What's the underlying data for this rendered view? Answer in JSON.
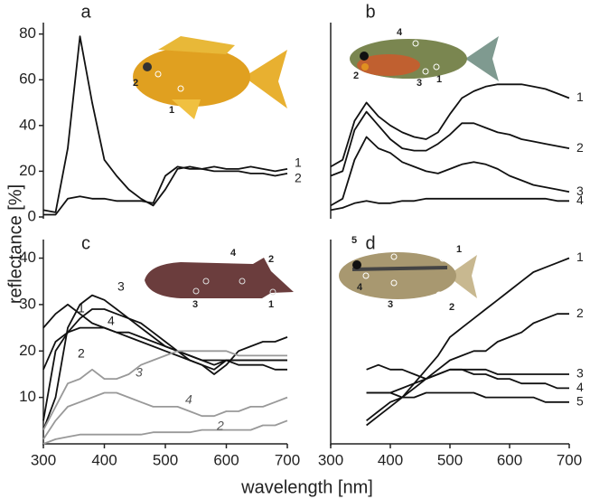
{
  "figure": {
    "ylabel": "reflectance [%]",
    "xlabel": "wavelength [nm]"
  },
  "chart_data": [
    {
      "type": "line",
      "title": "a",
      "x": [
        300,
        320,
        340,
        360,
        380,
        400,
        420,
        440,
        460,
        480,
        500,
        520,
        540,
        560,
        580,
        600,
        620,
        640,
        660,
        680,
        700
      ],
      "xlim": [
        300,
        700
      ],
      "ylim": [
        0,
        85
      ],
      "yticks": [
        0,
        20,
        40,
        60,
        80
      ],
      "photo_labels": [
        "2",
        "1"
      ],
      "series": [
        {
          "name": "1",
          "color": "#111111",
          "values": [
            3,
            2,
            30,
            79,
            50,
            25,
            18,
            12,
            8,
            5,
            12,
            21,
            22,
            21,
            22,
            21,
            21,
            22,
            21,
            20,
            21
          ]
        },
        {
          "name": "2",
          "color": "#111111",
          "values": [
            1,
            1,
            8,
            9,
            8,
            8,
            7,
            7,
            7,
            6,
            18,
            22,
            21,
            21,
            20,
            20,
            20,
            19,
            19,
            18,
            19
          ]
        }
      ]
    },
    {
      "type": "line",
      "title": "b",
      "x": [
        300,
        320,
        340,
        360,
        380,
        400,
        420,
        440,
        460,
        480,
        500,
        520,
        540,
        560,
        580,
        600,
        620,
        640,
        660,
        680,
        700
      ],
      "xlim": [
        300,
        700
      ],
      "ylim": [
        0,
        85
      ],
      "photo_labels": [
        "4",
        "2",
        "3",
        "1"
      ],
      "series": [
        {
          "name": "1",
          "color": "#111111",
          "values": [
            22,
            25,
            42,
            50,
            44,
            40,
            37,
            35,
            34,
            37,
            45,
            52,
            55,
            57,
            58,
            58,
            58,
            57,
            56,
            54,
            52
          ]
        },
        {
          "name": "2",
          "color": "#111111",
          "values": [
            18,
            20,
            38,
            46,
            40,
            34,
            30,
            29,
            29,
            32,
            36,
            41,
            41,
            39,
            37,
            36,
            34,
            33,
            32,
            31,
            30
          ]
        },
        {
          "name": "3",
          "color": "#111111",
          "values": [
            5,
            8,
            25,
            35,
            30,
            28,
            24,
            22,
            20,
            19,
            21,
            23,
            24,
            23,
            21,
            18,
            16,
            14,
            13,
            12,
            11
          ]
        },
        {
          "name": "4",
          "color": "#111111",
          "values": [
            3,
            4,
            6,
            7,
            6,
            6,
            7,
            7,
            8,
            8,
            8,
            8,
            8,
            8,
            8,
            8,
            8,
            8,
            8,
            7,
            7
          ]
        }
      ]
    },
    {
      "type": "line",
      "title": "c",
      "x": [
        300,
        320,
        340,
        360,
        380,
        400,
        420,
        440,
        460,
        480,
        500,
        520,
        540,
        560,
        580,
        600,
        620,
        640,
        660,
        680,
        700
      ],
      "xlim": [
        300,
        700
      ],
      "ylim": [
        0,
        44
      ],
      "yticks": [
        10,
        20,
        30,
        40
      ],
      "xticks": [
        300,
        400,
        500,
        600,
        700
      ],
      "photo_labels": [
        "4",
        "2",
        "3",
        "1"
      ],
      "series": [
        {
          "name": "1",
          "color": "#111111",
          "values": [
            25,
            28,
            30,
            28,
            26,
            25,
            24,
            23,
            22,
            21,
            20,
            19,
            18,
            17,
            15,
            17,
            20,
            21,
            22,
            22,
            23
          ]
        },
        {
          "name": "2",
          "color": "#111111",
          "values": [
            16,
            22,
            24,
            25,
            25,
            25,
            24,
            24,
            23,
            22,
            21,
            20,
            19,
            18,
            18,
            18,
            17,
            17,
            17,
            16,
            16
          ]
        },
        {
          "name": "3",
          "color": "#111111",
          "values": [
            3,
            10,
            25,
            30,
            32,
            31,
            29,
            27,
            25,
            23,
            21,
            20,
            19,
            18,
            17,
            18,
            18,
            18,
            18,
            18,
            18
          ]
        },
        {
          "name": "4",
          "color": "#111111",
          "values": [
            5,
            20,
            24,
            27,
            29,
            29,
            28,
            27,
            26,
            24,
            22,
            20,
            18,
            17,
            16,
            18,
            18,
            18,
            18,
            18,
            18
          ]
        },
        {
          "name": "3",
          "color": "#999999",
          "values": [
            3,
            8,
            13,
            14,
            16,
            14,
            14,
            15,
            17,
            18,
            19,
            20,
            20,
            20,
            20,
            20,
            19,
            19,
            19,
            19,
            19
          ]
        },
        {
          "name": "4",
          "color": "#999999",
          "values": [
            1,
            5,
            8,
            9,
            10,
            11,
            11,
            10,
            9,
            8,
            8,
            8,
            7,
            6,
            6,
            7,
            7,
            8,
            8,
            9,
            10
          ]
        },
        {
          "name": "2",
          "color": "#999999",
          "values": [
            0,
            1,
            1.5,
            2,
            2,
            2,
            2,
            2,
            2,
            2.5,
            2.5,
            2.5,
            2.5,
            3,
            3,
            3,
            3,
            3,
            4,
            4,
            5
          ]
        }
      ]
    },
    {
      "type": "line",
      "title": "d",
      "x": [
        300,
        320,
        340,
        360,
        380,
        400,
        420,
        440,
        460,
        480,
        500,
        520,
        540,
        560,
        580,
        600,
        620,
        640,
        660,
        680,
        700
      ],
      "xlim": [
        300,
        700
      ],
      "ylim": [
        0,
        44
      ],
      "xticks": [
        300,
        400,
        500,
        600,
        700
      ],
      "photo_labels": [
        "5",
        "1",
        "4",
        "3",
        "2"
      ],
      "series": [
        {
          "name": "1",
          "color": "#111111",
          "values": [
            null,
            null,
            null,
            4,
            6,
            8,
            10,
            13,
            16,
            19,
            23,
            25,
            27,
            29,
            31,
            33,
            35,
            37,
            38,
            39,
            40
          ]
        },
        {
          "name": "2",
          "color": "#111111",
          "values": [
            null,
            null,
            null,
            5,
            7,
            9,
            10,
            12,
            14,
            16,
            18,
            19,
            20,
            20,
            22,
            23,
            24,
            26,
            27,
            28,
            28
          ]
        },
        {
          "name": "3",
          "color": "#111111",
          "values": [
            null,
            null,
            null,
            16,
            17,
            16,
            16,
            15,
            14,
            15,
            16,
            16,
            16,
            16,
            15,
            15,
            15,
            15,
            15,
            15,
            15
          ]
        },
        {
          "name": "4",
          "color": "#111111",
          "values": [
            null,
            null,
            null,
            11,
            11,
            11,
            12,
            13,
            14,
            15,
            16,
            16,
            15,
            15,
            14,
            14,
            13,
            13,
            13,
            12,
            12
          ]
        },
        {
          "name": "5",
          "color": "#111111",
          "values": [
            null,
            null,
            null,
            11,
            11,
            11,
            10,
            10,
            11,
            11,
            11,
            11,
            11,
            10,
            10,
            10,
            10,
            10,
            9,
            9,
            9
          ]
        }
      ]
    }
  ]
}
